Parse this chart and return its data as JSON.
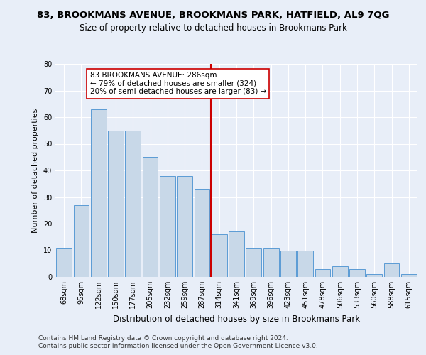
{
  "title": "83, BROOKMANS AVENUE, BROOKMANS PARK, HATFIELD, AL9 7QG",
  "subtitle": "Size of property relative to detached houses in Brookmans Park",
  "xlabel": "Distribution of detached houses by size in Brookmans Park",
  "ylabel": "Number of detached properties",
  "categories": [
    "68sqm",
    "95sqm",
    "122sqm",
    "150sqm",
    "177sqm",
    "205sqm",
    "232sqm",
    "259sqm",
    "287sqm",
    "314sqm",
    "341sqm",
    "369sqm",
    "396sqm",
    "423sqm",
    "451sqm",
    "478sqm",
    "506sqm",
    "533sqm",
    "560sqm",
    "588sqm",
    "615sqm"
  ],
  "values": [
    11,
    27,
    63,
    55,
    55,
    45,
    38,
    38,
    33,
    16,
    17,
    11,
    11,
    10,
    10,
    3,
    4,
    3,
    1,
    5,
    1
  ],
  "bar_color": "#c8d8e8",
  "bar_edge_color": "#5b9bd5",
  "highlight_index": 8,
  "vline_color": "#cc0000",
  "annotation_text": "83 BROOKMANS AVENUE: 286sqm\n← 79% of detached houses are smaller (324)\n20% of semi-detached houses are larger (83) →",
  "annotation_box_color": "#ffffff",
  "annotation_box_edge": "#cc0000",
  "ylim": [
    0,
    80
  ],
  "yticks": [
    0,
    10,
    20,
    30,
    40,
    50,
    60,
    70,
    80
  ],
  "background_color": "#e8eef8",
  "footer1": "Contains HM Land Registry data © Crown copyright and database right 2024.",
  "footer2": "Contains public sector information licensed under the Open Government Licence v3.0.",
  "title_fontsize": 9.5,
  "subtitle_fontsize": 8.5,
  "xlabel_fontsize": 8.5,
  "ylabel_fontsize": 8,
  "tick_fontsize": 7,
  "footer_fontsize": 6.5,
  "annot_fontsize": 7.5
}
